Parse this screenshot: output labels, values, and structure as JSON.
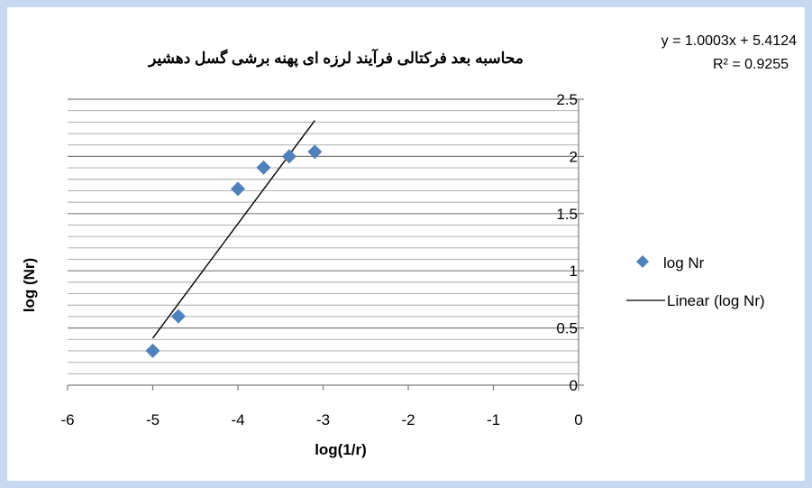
{
  "chart_data": {
    "type": "scatter",
    "title": "محاسبه بعد فرکتالی فرآیند لرزه ای پهنه برشی گسل دهشیر",
    "xlabel": "log(1/r)",
    "ylabel": "log (Nr)",
    "xlim": [
      -6,
      0
    ],
    "ylim": [
      0,
      2.5
    ],
    "x_ticks": [
      -6,
      -5,
      -4,
      -3,
      -2,
      -1,
      0
    ],
    "x_tick_labels": [
      "-6",
      "-5",
      "-4",
      "-3",
      "-2",
      "-1",
      "0"
    ],
    "y_ticks": [
      0,
      0.5,
      1,
      1.5,
      2,
      2.5
    ],
    "y_tick_labels": [
      "0",
      "0.5",
      "1",
      "1.5",
      "2",
      "2.5"
    ],
    "y_axis_position": "right",
    "minor_grid_step": 0.1,
    "grid": true,
    "series": [
      {
        "name": "log Nr",
        "marker": "diamond",
        "color": "#4f81bd",
        "x": [
          -5,
          -4.699,
          -4,
          -3.699,
          -3.398,
          -3.097
        ],
        "y": [
          0.301,
          0.602,
          1.716,
          1.903,
          2.0,
          2.041
        ]
      }
    ],
    "trendline": {
      "name": "Linear (log Nr)",
      "slope": 1.0003,
      "intercept": 5.4124,
      "x_range": [
        -5,
        -3.097
      ],
      "color": "#000000",
      "equation": "y = 1.0003x + 5.4124",
      "r_squared": "R² = 0.9255"
    },
    "legend_position": "right"
  }
}
